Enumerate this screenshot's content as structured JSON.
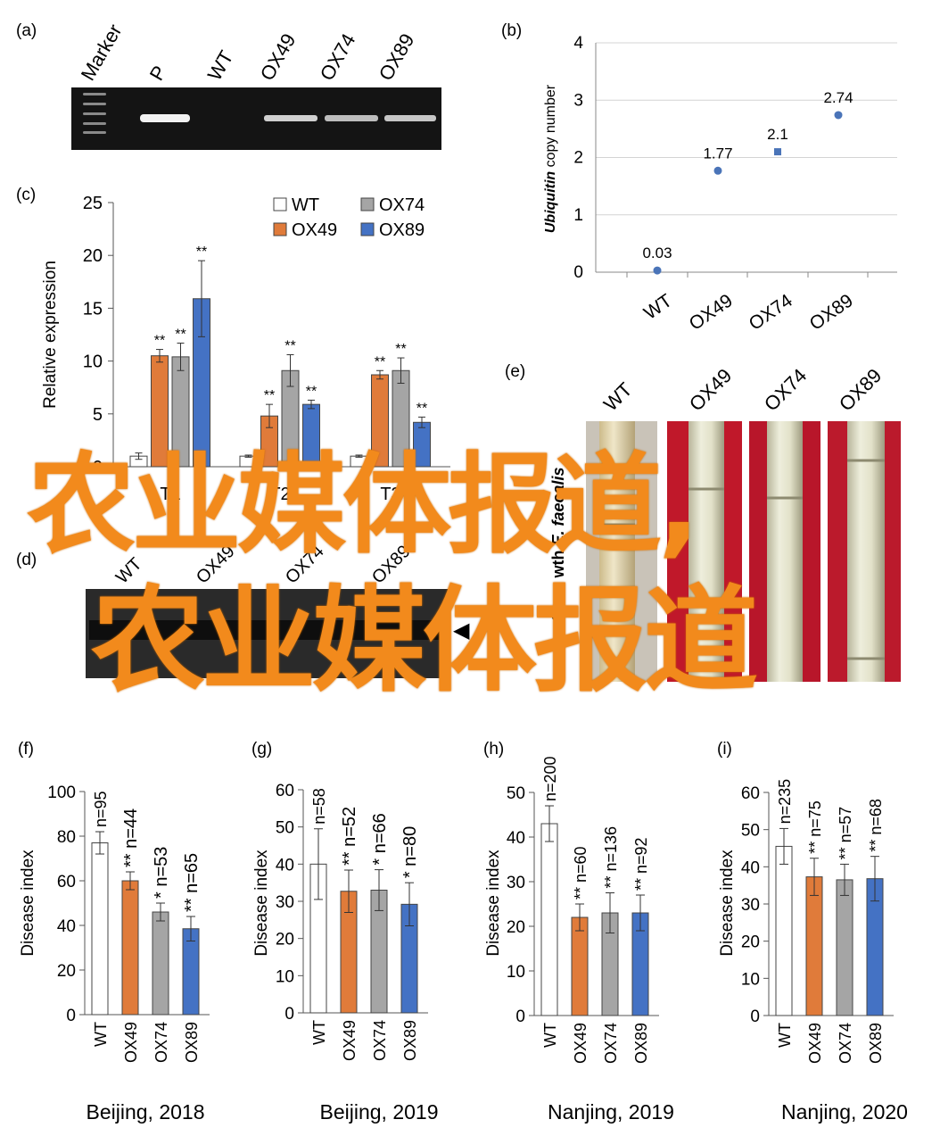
{
  "panels": {
    "a": {
      "label": "(a)",
      "lanes": [
        "Marker",
        "P",
        "WT",
        "OX49",
        "OX74",
        "OX89"
      ]
    },
    "b": {
      "label": "(b)",
      "chart_data": {
        "type": "scatter",
        "ylabel_italic": "Ubiquitin",
        "ylabel_rest": " copy number",
        "categories": [
          "WT",
          "OX49",
          "OX74",
          "OX89"
        ],
        "values": [
          0.03,
          1.77,
          2.1,
          2.74
        ],
        "value_labels": [
          "0.03",
          "1.77",
          "2.1",
          "2.74"
        ],
        "ylim": [
          0,
          4
        ],
        "yticks": [
          "0",
          "1",
          "2",
          "3",
          "4"
        ],
        "grid": true,
        "color": "#4a74b8"
      }
    },
    "c": {
      "label": "(c)",
      "chart_data": {
        "type": "bar",
        "ylabel": "Relative expression",
        "ylim": [
          0,
          25
        ],
        "yticks": [
          "0",
          "5",
          "10",
          "15",
          "20",
          "25"
        ],
        "categories": [
          "T1",
          "T2",
          "T3"
        ],
        "series": [
          {
            "name": "WT",
            "color": "#ffffff",
            "values": [
              1.0,
              1.0,
              1.0
            ],
            "err": [
              0.3,
              0.1,
              0.1
            ],
            "sig": [
              "",
              "",
              ""
            ]
          },
          {
            "name": "OX49",
            "color": "#e07b3a",
            "values": [
              10.5,
              4.8,
              8.7
            ],
            "err": [
              0.6,
              1.1,
              0.4
            ],
            "sig": [
              "**",
              "**",
              "**"
            ]
          },
          {
            "name": "OX74",
            "color": "#a5a5a5",
            "values": [
              10.4,
              9.1,
              9.1
            ],
            "err": [
              1.3,
              1.5,
              1.2
            ],
            "sig": [
              "**",
              "**",
              "**"
            ]
          },
          {
            "name": "OX89",
            "color": "#4472c4",
            "values": [
              15.9,
              5.9,
              4.2
            ],
            "err": [
              3.6,
              0.4,
              0.5
            ],
            "sig": [
              "**",
              "**",
              "**"
            ]
          }
        ]
      }
    },
    "d": {
      "label": "(d)",
      "lanes": [
        "WT",
        "OX49",
        "OX74",
        "OX89"
      ],
      "arrow": "◀"
    },
    "e": {
      "label": "(e)",
      "lanes": [
        "WT",
        "OX49",
        "OX74",
        "OX89"
      ],
      "side_italic": "E. faecalis",
      "side_rest": "Stem wth "
    },
    "disease_charts": [
      {
        "label": "(f)",
        "chart_data": {
          "type": "bar",
          "ylabel": "Disease index",
          "ylim": [
            0,
            100
          ],
          "yticks": [
            "0",
            "20",
            "40",
            "60",
            "80",
            "100"
          ],
          "categories": [
            "WT",
            "OX49",
            "OX74",
            "OX89"
          ],
          "values": [
            77,
            60,
            46,
            38.5
          ],
          "err": [
            5,
            4,
            4,
            5.5
          ],
          "n": [
            "n=95",
            "n=44",
            "n=53",
            "n=65"
          ],
          "sig": [
            "",
            "**",
            "*",
            "**"
          ],
          "colors": [
            "#ffffff",
            "#e07b3a",
            "#a5a5a5",
            "#4472c4"
          ],
          "xlabel": "Beijing, 2018"
        }
      },
      {
        "label": "(g)",
        "chart_data": {
          "type": "bar",
          "ylabel": "Disease index",
          "ylim": [
            0,
            60
          ],
          "yticks": [
            "0",
            "10",
            "20",
            "30",
            "40",
            "50",
            "60"
          ],
          "categories": [
            "WT",
            "OX49",
            "OX74",
            "OX89"
          ],
          "values": [
            40,
            32.7,
            33,
            29.2
          ],
          "err": [
            9.5,
            5.7,
            5.5,
            5.8
          ],
          "n": [
            "n=58",
            "n=52",
            "n=66",
            "n=80"
          ],
          "sig": [
            "",
            "**",
            "*",
            "*"
          ],
          "colors": [
            "#ffffff",
            "#e07b3a",
            "#a5a5a5",
            "#4472c4"
          ],
          "xlabel": "Beijing, 2019"
        }
      },
      {
        "label": "(h)",
        "chart_data": {
          "type": "bar",
          "ylabel": "Disease index",
          "ylim": [
            0,
            50
          ],
          "yticks": [
            "0",
            "10",
            "20",
            "30",
            "40",
            "50"
          ],
          "categories": [
            "WT",
            "OX49",
            "OX74",
            "OX89"
          ],
          "values": [
            43,
            22,
            23,
            23
          ],
          "err": [
            4,
            3,
            4.5,
            4
          ],
          "n": [
            "n=200",
            "n=60",
            "n=136",
            "n=92"
          ],
          "sig": [
            "",
            "**",
            "**",
            "**"
          ],
          "colors": [
            "#ffffff",
            "#e07b3a",
            "#a5a5a5",
            "#4472c4"
          ],
          "xlabel": "Nanjing, 2019"
        }
      },
      {
        "label": "(i)",
        "chart_data": {
          "type": "bar",
          "ylabel": "Disease index",
          "ylim": [
            0,
            60
          ],
          "yticks": [
            "0",
            "10",
            "20",
            "30",
            "40",
            "50",
            "60"
          ],
          "categories": [
            "WT",
            "OX49",
            "OX74",
            "OX89"
          ],
          "values": [
            45.5,
            37.3,
            36.5,
            36.8
          ],
          "err": [
            4.8,
            5,
            4.2,
            6
          ],
          "n": [
            "n=235",
            "n=75",
            "n=57",
            "n=68"
          ],
          "sig": [
            "",
            "**",
            "**",
            "**"
          ],
          "colors": [
            "#ffffff",
            "#e07b3a",
            "#a5a5a5",
            "#4472c4"
          ],
          "xlabel": "Nanjing, 2020"
        }
      }
    ]
  },
  "watermark": {
    "line1": "农业媒体报道,",
    "line2": "农业媒体报道",
    "color": "#f28a1c"
  }
}
